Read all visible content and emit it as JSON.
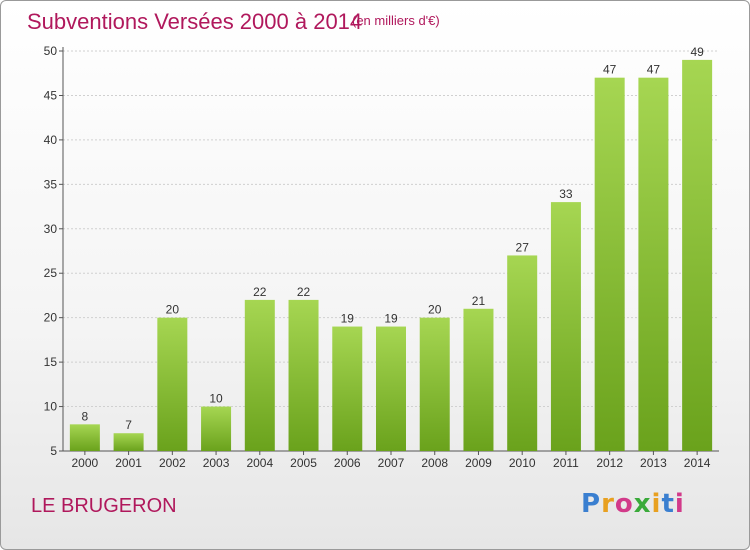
{
  "header": {
    "title": "Subventions Versées 2000 à 2014",
    "subtitle": "(en milliers d'€)"
  },
  "footer": {
    "commune": "LE BRUGERON",
    "logo_text": "Proxiti",
    "logo_colors": [
      "#3a7fd0",
      "#e8a020",
      "#d23a8a",
      "#3aaa3a",
      "#e8a020",
      "#3a7fd0",
      "#d23a8a"
    ]
  },
  "colors": {
    "bar_light": "#a6d652",
    "bar_dark": "#6aa21c",
    "title": "#b0185c"
  },
  "chart_data": {
    "type": "bar",
    "title": "Subventions Versées 2000 à 2014",
    "subtitle": "(en milliers d'€)",
    "categories": [
      "2000",
      "2001",
      "2002",
      "2003",
      "2004",
      "2005",
      "2006",
      "2007",
      "2008",
      "2009",
      "2010",
      "2011",
      "2012",
      "2013",
      "2014"
    ],
    "values": [
      8,
      7,
      20,
      10,
      22,
      22,
      19,
      19,
      20,
      21,
      27,
      33,
      47,
      47,
      49
    ],
    "value_labels": [
      "8",
      "7",
      "20",
      "10",
      "22",
      "22",
      "19",
      "19",
      "20",
      "21",
      "27",
      "33",
      "47",
      "47",
      "49"
    ],
    "yticks": [
      "5",
      "10",
      "15",
      "20",
      "25",
      "30",
      "35",
      "40",
      "45",
      "50"
    ],
    "ylim": [
      5,
      50
    ],
    "grid": true,
    "xlabel": "",
    "ylabel": ""
  }
}
